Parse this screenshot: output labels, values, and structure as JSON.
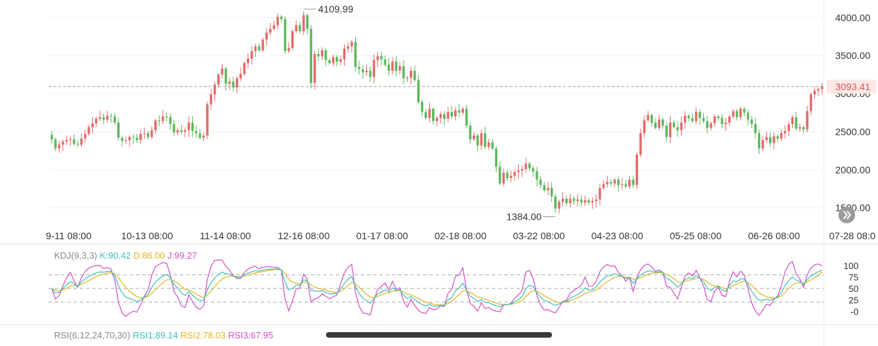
{
  "chart_data": {
    "type": "candlestick",
    "x_tick_labels": [
      "9-11 08:00",
      "10-13 08:00",
      "11-14 08:00",
      "12-16 08:00",
      "01-17 08:00",
      "02-18 08:00",
      "03-22 08:00",
      "04-23 08:00",
      "05-25 08:00",
      "06-26 08:00",
      "07-28 08:0"
    ],
    "y_tick_labels": [
      "4000.00",
      "3500.00",
      "3000.00",
      "2500.00",
      "2000.00",
      "1500.00"
    ],
    "y_ticks": [
      4000,
      3500,
      3000,
      2500,
      2000,
      1500
    ],
    "ylim": [
      1270,
      4230
    ],
    "high_marker": {
      "label": "4109.99",
      "value": 4109.99
    },
    "low_marker": {
      "label": "1384.00",
      "value": 1384.0
    },
    "last_price": {
      "label": "3093.41",
      "value": 3093.41
    },
    "closes": [
      2400,
      2280,
      2330,
      2370,
      2390,
      2400,
      2340,
      2330,
      2410,
      2470,
      2560,
      2610,
      2670,
      2690,
      2660,
      2710,
      2700,
      2620,
      2420,
      2380,
      2390,
      2430,
      2420,
      2390,
      2470,
      2480,
      2430,
      2520,
      2650,
      2640,
      2700,
      2690,
      2600,
      2490,
      2520,
      2500,
      2520,
      2620,
      2510,
      2480,
      2420,
      2450,
      2860,
      2990,
      3120,
      3250,
      3330,
      3130,
      3160,
      3080,
      3200,
      3260,
      3400,
      3460,
      3560,
      3620,
      3570,
      3710,
      3800,
      3850,
      3900,
      4010,
      3980,
      3560,
      3600,
      3820,
      3900,
      3820,
      4030,
      3850,
      3140,
      3520,
      3490,
      3570,
      3440,
      3400,
      3480,
      3420,
      3450,
      3590,
      3620,
      3680,
      3350,
      3320,
      3280,
      3300,
      3220,
      3440,
      3490,
      3450,
      3380,
      3300,
      3420,
      3300,
      3360,
      3200,
      3210,
      3300,
      3180,
      2890,
      2760,
      2680,
      2800,
      2640,
      2680,
      2730,
      2670,
      2760,
      2700,
      2780,
      2750,
      2800,
      2580,
      2400,
      2450,
      2320,
      2480,
      2300,
      2360,
      2280,
      2040,
      1820,
      1960,
      1890,
      1920,
      1970,
      1990,
      2010,
      2080,
      2020,
      1980,
      1870,
      1800,
      1730,
      1760,
      1650,
      1490,
      1580,
      1620,
      1560,
      1620,
      1590,
      1610,
      1570,
      1600,
      1570,
      1590,
      1610,
      1760,
      1810,
      1840,
      1820,
      1870,
      1800,
      1810,
      1780,
      1870,
      1800,
      2200,
      2480,
      2650,
      2720,
      2620,
      2550,
      2660,
      2580,
      2430,
      2620,
      2560,
      2520,
      2620,
      2710,
      2680,
      2640,
      2760,
      2680,
      2640,
      2550,
      2610,
      2700,
      2680,
      2600,
      2620,
      2700,
      2770,
      2690,
      2800,
      2750,
      2660,
      2600,
      2480,
      2280,
      2390,
      2430,
      2350,
      2440,
      2410,
      2480,
      2510,
      2600,
      2690,
      2540,
      2560,
      2530,
      2770,
      2990,
      3040,
      3060,
      3093.41
    ],
    "kdj": {
      "label": "KDJ(9,3,3)",
      "k_label": "K:90.42",
      "d_label": "D:86.00",
      "j_label": "J:99.27",
      "k": 90.42,
      "d": 86.0,
      "j": 99.27
    },
    "kdj_y_tick_labels": [
      "100",
      "75",
      "50",
      "25",
      "-0"
    ],
    "kdj_y_ticks": [
      100,
      75,
      50,
      25,
      0
    ],
    "rsi": {
      "label": "RSI(6,12,24,70,30)",
      "rsi1_label": "RSI1:89.14",
      "rsi2_label": "RSI2:78.03",
      "rsi3_label": "RSI3:67.95"
    },
    "grid": true,
    "colors": {
      "up": "#e36a6a",
      "down": "#5cb85c",
      "k": "#3bbfb8",
      "d": "#e3b51e",
      "j": "#d04fc8",
      "last_price": "#e05555"
    }
  }
}
